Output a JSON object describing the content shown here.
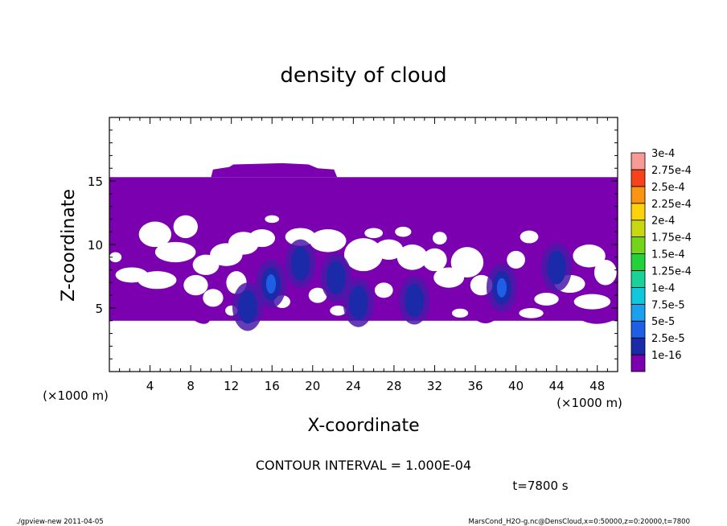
{
  "chart_data": {
    "type": "heatmap",
    "title": "density of cloud",
    "xlabel": "X-coordinate",
    "ylabel": "Z-coordinate",
    "x_unit": "(×1000 m)",
    "y_unit": "(×1000 m)",
    "xlim": [
      0,
      50
    ],
    "ylim": [
      0,
      20
    ],
    "x_ticks": [
      4,
      8,
      12,
      16,
      20,
      24,
      28,
      32,
      36,
      40,
      44,
      48
    ],
    "y_ticks": [
      5,
      10,
      15
    ],
    "contour_interval_text": "CONTOUR INTERVAL = 1.000E-04",
    "time_text": "t=7800 s",
    "colorbar": {
      "levels": [
        {
          "label": "1e-16",
          "color": "#7a00b0"
        },
        {
          "label": "2.5e-5",
          "color": "#1a2aa8"
        },
        {
          "label": "5e-5",
          "color": "#1f5fe6"
        },
        {
          "label": "7.5e-5",
          "color": "#1aa0ee"
        },
        {
          "label": "1e-4",
          "color": "#10c8dc"
        },
        {
          "label": "1.25e-4",
          "color": "#19d29a"
        },
        {
          "label": "1.5e-4",
          "color": "#23d23a"
        },
        {
          "label": "1.75e-4",
          "color": "#74d418"
        },
        {
          "label": "2e-4",
          "color": "#c8d810"
        },
        {
          "label": "2.25e-4",
          "color": "#fcd20a"
        },
        {
          "label": "2.5e-4",
          "color": "#fb9410"
        },
        {
          "label": "2.75e-4",
          "color": "#f8431a"
        },
        {
          "label": "3e-4",
          "color": "#f79a96"
        }
      ]
    },
    "cloud_band": {
      "z_bottom": 4,
      "z_top": 15.3,
      "background_value": "1e-16"
    },
    "maxima": [
      {
        "x": 15.9,
        "z": 6.9,
        "level": "5e-5"
      },
      {
        "x": 22.3,
        "z": 7.4,
        "level": "2.5e-5"
      },
      {
        "x": 38.6,
        "z": 6.6,
        "level": "5e-5"
      },
      {
        "x": 44.0,
        "z": 8.2,
        "level": "2.5e-5"
      },
      {
        "x": 30.0,
        "z": 5.6,
        "level": "2.5e-5"
      },
      {
        "x": 13.6,
        "z": 5.1,
        "level": "2.5e-5"
      },
      {
        "x": 24.5,
        "z": 5.4,
        "level": "2.5e-5"
      },
      {
        "x": 18.8,
        "z": 8.5,
        "level": "2.5e-5"
      }
    ]
  },
  "footer": {
    "left": "./gpview-new  2011-04-05",
    "right": "MarsCond_H2O-g.nc@DensCloud,x=0:50000,z=0:20000,t=7800"
  }
}
